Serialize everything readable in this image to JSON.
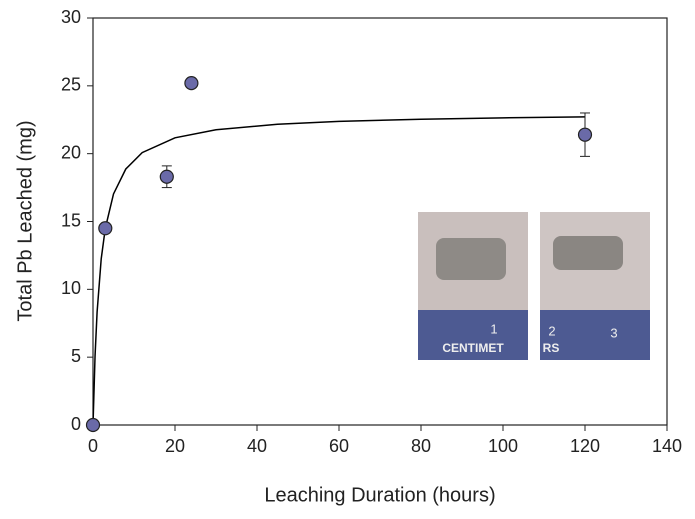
{
  "chart_data": {
    "type": "scatter",
    "x_label": "Leaching Duration (hours)",
    "y_label": "Total Pb Leached (mg)",
    "xlim": [
      0,
      140
    ],
    "xticks": [
      0,
      20,
      40,
      60,
      80,
      100,
      120,
      140
    ],
    "ylim": [
      0,
      30
    ],
    "yticks": [
      0,
      5,
      10,
      15,
      20,
      25,
      30
    ],
    "series": [
      {
        "type": "scatter",
        "color": "#6a6aa8",
        "x": [
          0,
          3,
          18,
          24,
          120
        ],
        "values": [
          0,
          14.5,
          18.3,
          25.2,
          21.4
        ],
        "errors": [
          null,
          null,
          0.8,
          null,
          1.6
        ]
      },
      {
        "type": "line",
        "color": "#000000",
        "x": [
          0,
          0.5,
          1,
          2,
          3,
          5,
          8,
          12,
          20,
          30,
          45,
          60,
          80,
          100,
          120
        ],
        "values": [
          0,
          5.08,
          8.33,
          12.24,
          14.5,
          17.03,
          18.87,
          20.08,
          21.17,
          21.76,
          22.17,
          22.38,
          22.54,
          22.64,
          22.71
        ]
      }
    ],
    "annotations": [
      "1",
      "CENTIMET",
      "RS",
      "2",
      "3"
    ]
  }
}
